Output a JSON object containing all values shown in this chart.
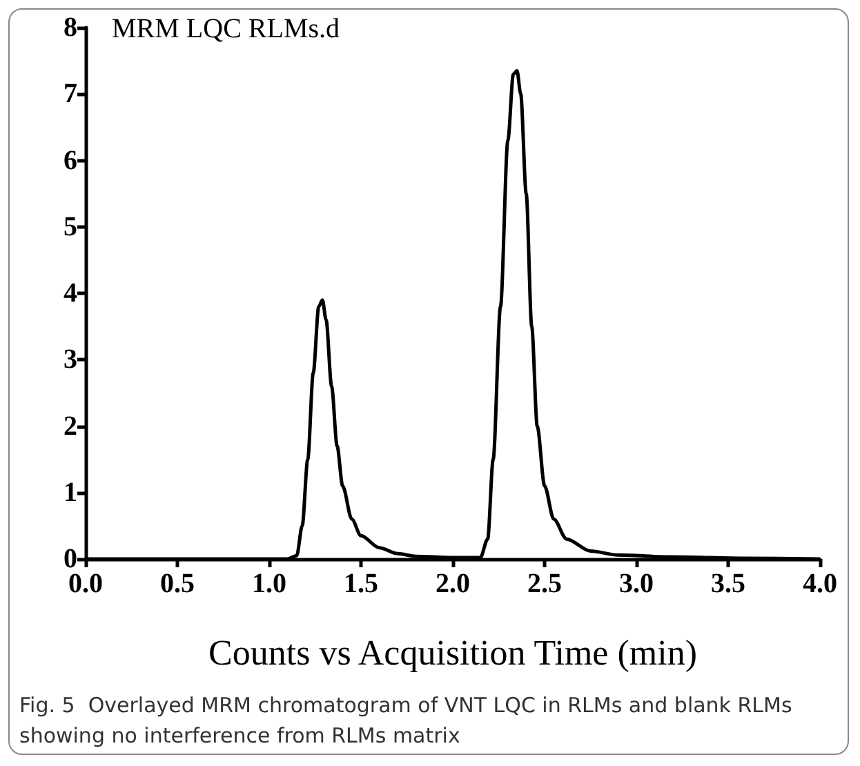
{
  "chart_data": {
    "type": "line",
    "title": "MRM LQC RLMs.d",
    "xlabel": "Counts vs Acquisition Time (min)",
    "annotations": [
      "Fig. 5  Overlayed MRM chromatogram of VNT LQC in RLMs and blank RLMs showing no interference from RLMs matrix"
    ],
    "series": [
      {
        "color": "#000000",
        "x": [
          0,
          1.1,
          1.15,
          1.18,
          1.21,
          1.24,
          1.27,
          1.29,
          1.31,
          1.34,
          1.37,
          1.4,
          1.45,
          1.5,
          1.6,
          1.7,
          1.8,
          2.0,
          2.15,
          2.19,
          2.22,
          2.26,
          2.3,
          2.33,
          2.35,
          2.37,
          2.4,
          2.43,
          2.46,
          2.5,
          2.55,
          2.62,
          2.75,
          2.9,
          3.2,
          3.6,
          4.0
        ],
        "values": [
          0,
          0,
          0.05,
          0.5,
          1.5,
          2.8,
          3.8,
          3.9,
          3.6,
          2.6,
          1.7,
          1.1,
          0.6,
          0.35,
          0.17,
          0.08,
          0.04,
          0.02,
          0.02,
          0.3,
          1.5,
          3.8,
          6.3,
          7.3,
          7.35,
          7.0,
          5.5,
          3.5,
          2.0,
          1.1,
          0.6,
          0.3,
          0.12,
          0.06,
          0.03,
          0.01,
          0
        ]
      }
    ],
    "xlim": [
      0,
      4
    ],
    "xticks": [
      {
        "value": 0,
        "label": "0.0"
      },
      {
        "value": 0.5,
        "label": "0.5"
      },
      {
        "value": 1,
        "label": "1.0"
      },
      {
        "value": 1.5,
        "label": "1.5"
      },
      {
        "value": 2,
        "label": "2.0"
      },
      {
        "value": 2.5,
        "label": "2.5"
      },
      {
        "value": 3,
        "label": "3.0"
      },
      {
        "value": 3.5,
        "label": "3.5"
      },
      {
        "value": 4,
        "label": "4.0"
      }
    ],
    "ylim": [
      0,
      8
    ],
    "yticks": [
      0,
      1,
      2,
      3,
      4,
      5,
      6,
      7,
      8
    ],
    "grid": false,
    "marker": "none",
    "line_style": "solid"
  }
}
